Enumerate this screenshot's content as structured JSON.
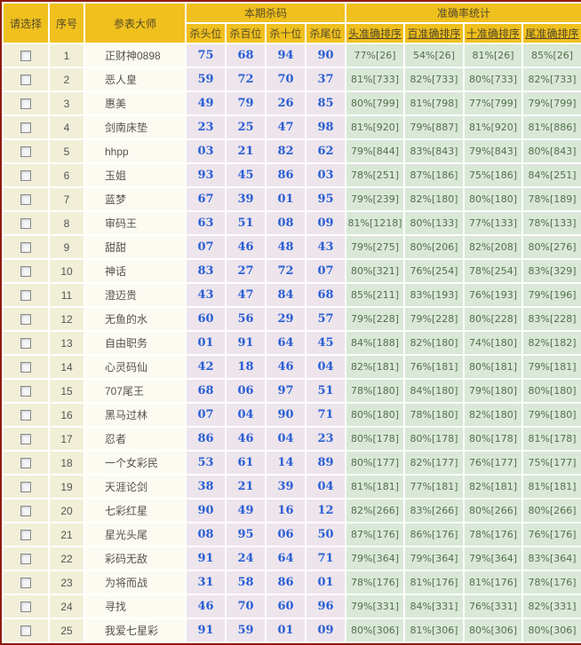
{
  "colors": {
    "header_bg": "#f0c01e",
    "outer_border": "#8e1a0b",
    "select_col_bg": "#f2efd9",
    "name_col_bg": "#fcfbf2",
    "kill_col_bg": "#ede4ec",
    "accuracy_col_bg": "#d9e8d7",
    "kill_text": "#2a5fd4",
    "accuracy_text": "#53704e"
  },
  "table": {
    "headers": {
      "select": "请选择",
      "index": "序号",
      "master": "参表大师",
      "kill_group": "本期杀码",
      "kill_cols": [
        "杀头位",
        "杀百位",
        "杀十位",
        "杀尾位"
      ],
      "accuracy_group": "准确率统计",
      "accuracy_cols": [
        "头准确排序",
        "百准确排序",
        "十准确排序",
        "尾准确排序"
      ]
    },
    "rows": [
      {
        "index": "1",
        "master": "正财神0898",
        "kills": [
          "75",
          "68",
          "94",
          "90"
        ],
        "accuracy": [
          "77%[26]",
          "54%[26]",
          "81%[26]",
          "85%[26]"
        ]
      },
      {
        "index": "2",
        "master": "恶人皇",
        "kills": [
          "59",
          "72",
          "70",
          "37"
        ],
        "accuracy": [
          "81%[733]",
          "82%[733]",
          "80%[733]",
          "82%[733]"
        ]
      },
      {
        "index": "3",
        "master": "惠美",
        "kills": [
          "49",
          "79",
          "26",
          "85"
        ],
        "accuracy": [
          "80%[799]",
          "81%[798]",
          "77%[799]",
          "79%[799]"
        ]
      },
      {
        "index": "4",
        "master": "剑南床垫",
        "kills": [
          "23",
          "25",
          "47",
          "98"
        ],
        "accuracy": [
          "81%[920]",
          "79%[887]",
          "81%[920]",
          "81%[886]"
        ]
      },
      {
        "index": "5",
        "master": "hhpp",
        "kills": [
          "03",
          "21",
          "82",
          "62"
        ],
        "accuracy": [
          "79%[844]",
          "83%[843]",
          "79%[843]",
          "80%[843]"
        ]
      },
      {
        "index": "6",
        "master": "玉姐",
        "kills": [
          "93",
          "45",
          "86",
          "03"
        ],
        "accuracy": [
          "78%[251]",
          "87%[186]",
          "75%[186]",
          "84%[251]"
        ]
      },
      {
        "index": "7",
        "master": "蓝梦",
        "kills": [
          "67",
          "39",
          "01",
          "95"
        ],
        "accuracy": [
          "79%[239]",
          "82%[180]",
          "80%[180]",
          "78%[189]"
        ]
      },
      {
        "index": "8",
        "master": "审码王",
        "kills": [
          "63",
          "51",
          "08",
          "09"
        ],
        "accuracy": [
          "81%[1218]",
          "80%[133]",
          "77%[133]",
          "78%[133]"
        ]
      },
      {
        "index": "9",
        "master": "甜甜",
        "kills": [
          "07",
          "46",
          "48",
          "43"
        ],
        "accuracy": [
          "79%[275]",
          "80%[206]",
          "82%[208]",
          "80%[276]"
        ]
      },
      {
        "index": "10",
        "master": "神话",
        "kills": [
          "83",
          "27",
          "72",
          "07"
        ],
        "accuracy": [
          "80%[321]",
          "76%[254]",
          "78%[254]",
          "83%[329]"
        ]
      },
      {
        "index": "11",
        "master": "澄迈贵",
        "kills": [
          "43",
          "47",
          "84",
          "68"
        ],
        "accuracy": [
          "85%[211]",
          "83%[193]",
          "76%[193]",
          "79%[196]"
        ]
      },
      {
        "index": "12",
        "master": "无鱼的水",
        "kills": [
          "60",
          "56",
          "29",
          "57"
        ],
        "accuracy": [
          "79%[228]",
          "79%[228]",
          "80%[228]",
          "83%[228]"
        ]
      },
      {
        "index": "13",
        "master": "自由职务",
        "kills": [
          "01",
          "91",
          "64",
          "45"
        ],
        "accuracy": [
          "84%[188]",
          "82%[180]",
          "74%[180]",
          "82%[182]"
        ]
      },
      {
        "index": "14",
        "master": "心灵码仙",
        "kills": [
          "42",
          "18",
          "46",
          "04"
        ],
        "accuracy": [
          "82%[181]",
          "76%[181]",
          "80%[181]",
          "79%[181]"
        ]
      },
      {
        "index": "15",
        "master": "707尾王",
        "kills": [
          "68",
          "06",
          "97",
          "51"
        ],
        "accuracy": [
          "78%[180]",
          "84%[180]",
          "79%[180]",
          "80%[180]"
        ]
      },
      {
        "index": "16",
        "master": "黑马过林",
        "kills": [
          "07",
          "04",
          "90",
          "71"
        ],
        "accuracy": [
          "80%[180]",
          "78%[180]",
          "82%[180]",
          "79%[180]"
        ]
      },
      {
        "index": "17",
        "master": "忍者",
        "kills": [
          "86",
          "46",
          "04",
          "23"
        ],
        "accuracy": [
          "80%[178]",
          "80%[178]",
          "80%[178]",
          "81%[178]"
        ]
      },
      {
        "index": "18",
        "master": "一个女彩民",
        "kills": [
          "53",
          "61",
          "14",
          "89"
        ],
        "accuracy": [
          "80%[177]",
          "82%[177]",
          "76%[177]",
          "75%[177]"
        ]
      },
      {
        "index": "19",
        "master": "天涯论剑",
        "kills": [
          "38",
          "21",
          "39",
          "04"
        ],
        "accuracy": [
          "81%[181]",
          "77%[181]",
          "82%[181]",
          "81%[181]"
        ]
      },
      {
        "index": "20",
        "master": "七彩红星",
        "kills": [
          "90",
          "49",
          "16",
          "12"
        ],
        "accuracy": [
          "82%[266]",
          "83%[266]",
          "80%[266]",
          "80%[266]"
        ]
      },
      {
        "index": "21",
        "master": "星光头尾",
        "kills": [
          "08",
          "95",
          "06",
          "50"
        ],
        "accuracy": [
          "87%[176]",
          "86%[176]",
          "78%[176]",
          "76%[176]"
        ]
      },
      {
        "index": "22",
        "master": "彩码无敌",
        "kills": [
          "91",
          "24",
          "64",
          "71"
        ],
        "accuracy": [
          "79%[364]",
          "79%[364]",
          "79%[364]",
          "83%[364]"
        ]
      },
      {
        "index": "23",
        "master": "为将而战",
        "kills": [
          "31",
          "58",
          "86",
          "01"
        ],
        "accuracy": [
          "78%[176]",
          "81%[176]",
          "81%[176]",
          "78%[176]"
        ]
      },
      {
        "index": "24",
        "master": "寻找",
        "kills": [
          "46",
          "70",
          "60",
          "96"
        ],
        "accuracy": [
          "79%[331]",
          "84%[331]",
          "76%[331]",
          "82%[331]"
        ]
      },
      {
        "index": "25",
        "master": "我爱七星彩",
        "kills": [
          "91",
          "59",
          "01",
          "09"
        ],
        "accuracy": [
          "80%[306]",
          "81%[306]",
          "80%[306]",
          "80%[306]"
        ]
      }
    ]
  }
}
